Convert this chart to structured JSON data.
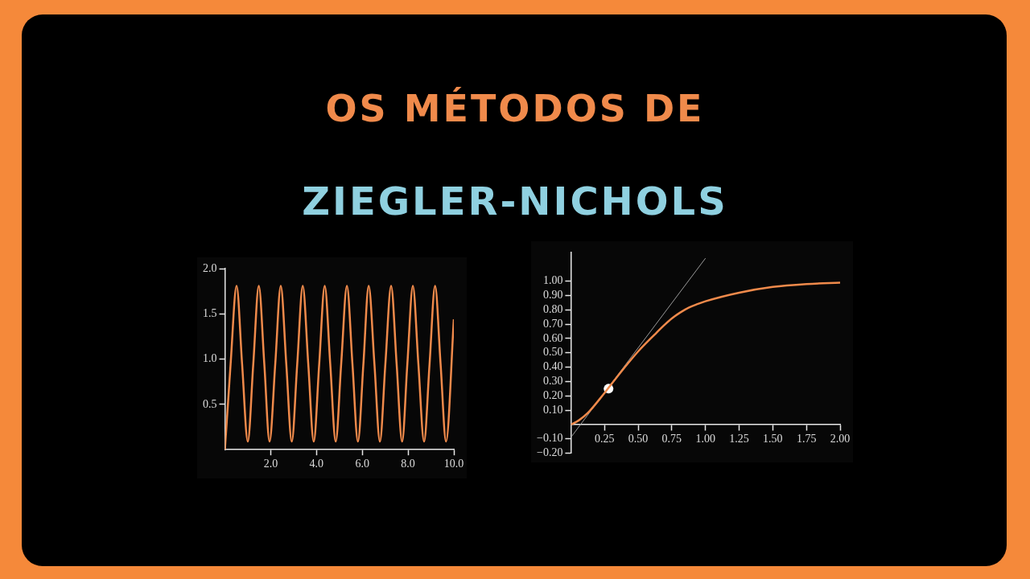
{
  "chart_data": [
    {
      "type": "line",
      "title": "OS MÉTODOS DE",
      "subtitle": "ZIEGLER-NICHOLS",
      "xlim": [
        0,
        10
      ],
      "xticks": [
        {
          "value": 2,
          "label": "2.0"
        },
        {
          "value": 4,
          "label": "4.0"
        },
        {
          "value": 6,
          "label": "6.0"
        },
        {
          "value": 8,
          "label": "8.0"
        },
        {
          "value": 10,
          "label": "10.0"
        }
      ],
      "ylim": [
        0,
        2
      ],
      "yticks": [
        0.5,
        {
          "value": 1,
          "label": "1.0"
        },
        1.5,
        {
          "value": 2,
          "label": "2.0"
        }
      ],
      "marker": "none",
      "series": [
        {
          "color": "#f08a4b",
          "x": [
            0,
            0.25,
            0.51,
            0.75,
            1.0,
            1.24,
            1.48,
            1.72,
            1.95,
            2.2,
            2.44,
            2.68,
            2.92,
            3.16,
            3.4,
            3.64,
            3.88,
            4.12,
            4.36,
            4.6,
            4.84,
            5.08,
            5.33,
            5.57,
            5.81,
            6.05,
            6.28,
            6.53,
            6.77,
            7.01,
            7.26,
            7.5,
            7.74,
            7.97,
            8.21,
            8.45,
            8.7,
            8.94,
            9.18,
            9.42,
            9.66,
            10.0
          ],
          "values": [
            0,
            0.95,
            1.81,
            0.95,
            0.09,
            0.95,
            1.81,
            0.95,
            0.09,
            0.95,
            1.81,
            0.95,
            0.09,
            0.95,
            1.81,
            0.95,
            0.09,
            0.95,
            1.81,
            0.95,
            0.09,
            0.95,
            1.81,
            0.95,
            0.09,
            0.95,
            1.81,
            0.95,
            0.09,
            0.95,
            1.81,
            0.95,
            0.09,
            0.95,
            1.81,
            0.95,
            0.09,
            0.95,
            1.81,
            0.95,
            0.09,
            1.44
          ]
        }
      ]
    },
    {
      "type": "line",
      "xlim": [
        0,
        2
      ],
      "xticks": [
        0.25,
        {
          "value": 0.5,
          "label": "0.50"
        },
        0.75,
        {
          "value": 1,
          "label": "1.00"
        },
        1.25,
        {
          "value": 1.5,
          "label": "1.50"
        },
        1.75,
        {
          "value": 2,
          "label": "2.00"
        }
      ],
      "ylim": [
        -0.2,
        1.2
      ],
      "yticks": [
        {
          "value": -0.2,
          "label": "−0.20"
        },
        {
          "value": -0.1,
          "label": "−0.10"
        },
        {
          "value": 0.1,
          "label": "0.10"
        },
        {
          "value": 0.2,
          "label": "0.20"
        },
        {
          "value": 0.3,
          "label": "0.30"
        },
        {
          "value": 0.4,
          "label": "0.40"
        },
        {
          "value": 0.5,
          "label": "0.50"
        },
        {
          "value": 0.6,
          "label": "0.60"
        },
        {
          "value": 0.7,
          "label": "0.70"
        },
        {
          "value": 0.8,
          "label": "0.80"
        },
        {
          "value": 0.9,
          "label": "0.90"
        },
        {
          "value": 1,
          "label": "1.00"
        }
      ],
      "marker": "none",
      "series": [
        {
          "color": "#f08a4b",
          "x": [
            0,
            0.06,
            0.125,
            0.25,
            0.375,
            0.5,
            0.625,
            0.69,
            0.75,
            0.81,
            0.875,
            0.94,
            1.0,
            1.25,
            1.5,
            1.75,
            2.0
          ],
          "values": [
            0,
            0.03,
            0.08,
            0.22,
            0.37,
            0.51,
            0.63,
            0.69,
            0.74,
            0.78,
            0.815,
            0.84,
            0.86,
            0.92,
            0.96,
            0.98,
            0.99
          ]
        },
        {
          "color": "#9a9a9a",
          "x": [
            0,
            1.0
          ],
          "values": [
            -0.09,
            1.16
          ]
        },
        {
          "type": "scatter",
          "marker": "circle",
          "color": "#ffffff",
          "x": [
            0.28
          ],
          "values": [
            0.25
          ]
        }
      ]
    }
  ]
}
